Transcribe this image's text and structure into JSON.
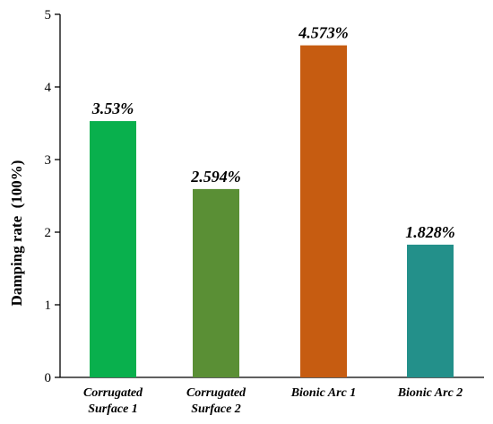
{
  "chart_data": {
    "type": "bar",
    "categories": [
      [
        "Corrugated",
        "Surface 1"
      ],
      [
        "Corrugated",
        "Surface 2"
      ],
      [
        "Bionic Arc 1"
      ],
      [
        "Bionic Arc 2"
      ]
    ],
    "values": [
      3.53,
      2.594,
      4.573,
      1.828
    ],
    "data_labels": [
      "3.53%",
      "2.594%",
      "4.573%",
      "1.828%"
    ],
    "colors": [
      "#09b04d",
      "#5a8f35",
      "#c65c11",
      "#23908a"
    ],
    "ylabel": "Damping rate  (100%)",
    "xlabel": "",
    "ylim": [
      0,
      5
    ],
    "yticks": [
      0,
      1,
      2,
      3,
      4,
      5
    ],
    "grid": false
  }
}
